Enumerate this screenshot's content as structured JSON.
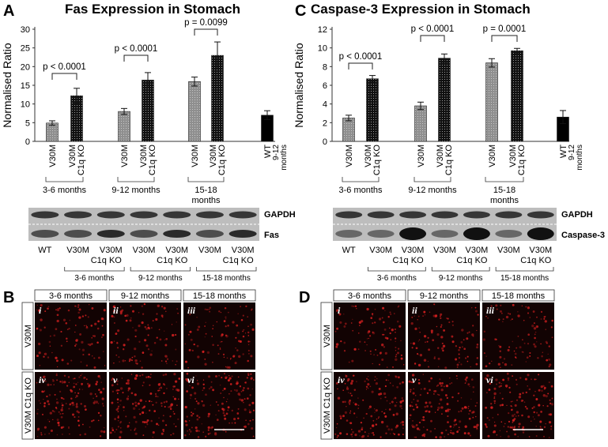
{
  "colors": {
    "v30m_bar": "#999999",
    "ko_bar": "#2a2a2a",
    "wt_bar": "#000000",
    "micro_bg": "#120303",
    "micro_red": "#d42020"
  },
  "panels": {
    "A": {
      "letter": "A",
      "title": "Fas Expression in Stomach"
    },
    "B": {
      "letter": "B"
    },
    "C": {
      "letter": "C",
      "title": "Caspase-3 Expression in Stomach"
    },
    "D": {
      "letter": "D"
    }
  },
  "axis_common": {
    "ylabel": "Normalised Ratio"
  },
  "chart_data": [
    {
      "type": "bar",
      "title": "Fas Expression in Stomach",
      "ylabel": "Normalised Ratio",
      "ylim": [
        0,
        30
      ],
      "yticks": [
        "0",
        "5",
        "10",
        "15",
        "20",
        "25",
        "30"
      ],
      "bars": [
        {
          "label": "V30M",
          "group": "3-6 months",
          "kind": "v30m",
          "value": 4.9,
          "err": 0.6
        },
        {
          "label": "V30M C1q KO",
          "group": "3-6 months",
          "kind": "ko",
          "value": 12.2,
          "err": 2.0
        },
        {
          "label": "V30M",
          "group": "9-12 months",
          "kind": "v30m",
          "value": 8.0,
          "err": 0.8
        },
        {
          "label": "V30M C1q KO",
          "group": "9-12 months",
          "kind": "ko",
          "value": 16.4,
          "err": 2.0
        },
        {
          "label": "V30M",
          "group": "15-18 months",
          "kind": "v30m",
          "value": 16.0,
          "err": 1.2
        },
        {
          "label": "V30M C1q KO",
          "group": "15-18 months",
          "kind": "ko",
          "value": 23.0,
          "err": 3.6
        },
        {
          "label": "WT",
          "group": "9-12 months",
          "kind": "wt",
          "value": 7.0,
          "err": 1.2
        }
      ],
      "pvalues": [
        "p < 0.0001",
        "p < 0.0001",
        "p = 0.0099"
      ],
      "groups": [
        "3-6 months",
        "9-12 months",
        "15-18 months"
      ],
      "wt_label": [
        "WT",
        "9-12",
        "months"
      ]
    },
    {
      "type": "bar",
      "title": "Caspase-3 Expression in Stomach",
      "ylabel": "Normalised Ratio",
      "ylim": [
        0,
        12
      ],
      "yticks": [
        "0",
        "2",
        "4",
        "6",
        "8",
        "10",
        "12"
      ],
      "bars": [
        {
          "label": "V30M",
          "group": "3-6 months",
          "kind": "v30m",
          "value": 2.5,
          "err": 0.3
        },
        {
          "label": "V30M C1q KO",
          "group": "3-6 months",
          "kind": "ko",
          "value": 6.7,
          "err": 0.35
        },
        {
          "label": "V30M",
          "group": "9-12 months",
          "kind": "v30m",
          "value": 3.8,
          "err": 0.4
        },
        {
          "label": "V30M C1q KO",
          "group": "9-12 months",
          "kind": "ko",
          "value": 8.9,
          "err": 0.45
        },
        {
          "label": "V30M",
          "group": "15-18 months",
          "kind": "v30m",
          "value": 8.4,
          "err": 0.45
        },
        {
          "label": "V30M C1q KO",
          "group": "15-18 months",
          "kind": "ko",
          "value": 9.7,
          "err": 0.25
        },
        {
          "label": "WT",
          "group": "9-12 months",
          "kind": "wt",
          "value": 2.6,
          "err": 0.7
        }
      ],
      "pvalues": [
        "p < 0.0001",
        "p < 0.0001",
        "p = 0.0001"
      ],
      "groups": [
        "3-6 months",
        "9-12 months",
        "15-18 months"
      ],
      "wt_label": [
        "WT",
        "9-12",
        "months"
      ]
    }
  ],
  "blots": {
    "A": {
      "bands": [
        "GAPDH",
        "Fas"
      ],
      "lanes": [
        {
          "top": "WT",
          "bottom": ""
        },
        {
          "top": "V30M",
          "bottom": ""
        },
        {
          "top": "V30M",
          "bottom": "C1q KO"
        },
        {
          "top": "V30M",
          "bottom": ""
        },
        {
          "top": "V30M",
          "bottom": "C1q KO"
        },
        {
          "top": "V30M",
          "bottom": ""
        },
        {
          "top": "V30M",
          "bottom": "C1q KO"
        }
      ],
      "groups": [
        "3-6 months",
        "9-12 months",
        "15-18 months"
      ]
    },
    "C": {
      "bands": [
        "GAPDH",
        "Caspase-3"
      ],
      "lanes": [
        {
          "top": "WT",
          "bottom": ""
        },
        {
          "top": "V30M",
          "bottom": ""
        },
        {
          "top": "V30M",
          "bottom": "C1q KO"
        },
        {
          "top": "V30M",
          "bottom": ""
        },
        {
          "top": "V30M",
          "bottom": "C1q KO"
        },
        {
          "top": "V30M",
          "bottom": ""
        },
        {
          "top": "V30M",
          "bottom": "C1q KO"
        }
      ],
      "groups": [
        "3-6 months",
        "9-12 months",
        "15-18 months"
      ]
    }
  },
  "micrographs": {
    "B": {
      "columns": [
        "3-6 months",
        "9-12 months",
        "15-18 months"
      ],
      "rows": [
        "V30M",
        "V30M C1q KO"
      ],
      "numerals": [
        "i",
        "ii",
        "iii",
        "iv",
        "v",
        "vi"
      ]
    },
    "D": {
      "columns": [
        "3-6 months",
        "9-12 months",
        "15-18 months"
      ],
      "rows": [
        "V30M",
        "V30M C1q KO"
      ],
      "numerals": [
        "i",
        "ii",
        "iii",
        "iv",
        "v",
        "vi"
      ]
    }
  }
}
